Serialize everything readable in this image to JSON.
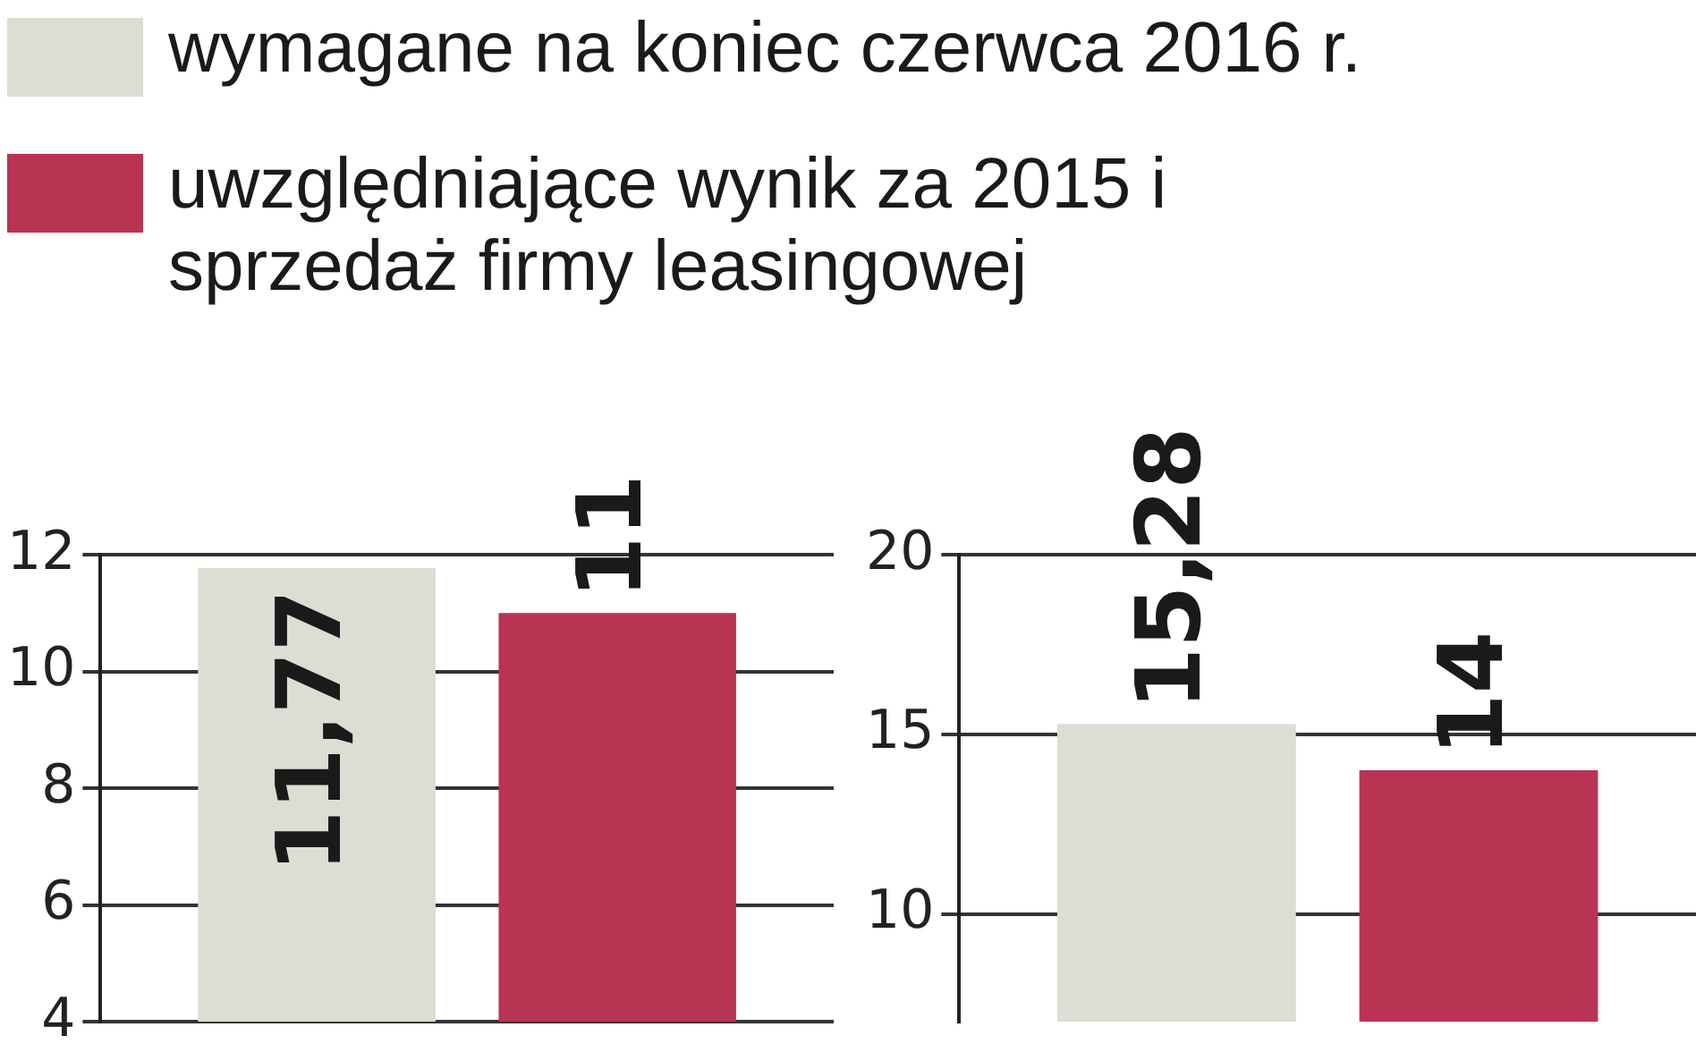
{
  "chart_data": [
    {
      "type": "bar",
      "categories": [
        null
      ],
      "series": [
        {
          "name": "wymagane na koniec czerwca 2016 r.",
          "color": "#dcddd3",
          "values": [
            11.77
          ],
          "value_labels": [
            "11,77"
          ]
        },
        {
          "name": "uwzględniające wynik za 2015 i sprzedaż firmy leasingowej",
          "color": "#b93453",
          "values": [
            11
          ],
          "value_labels": [
            "11"
          ]
        }
      ],
      "ylim": [
        4,
        12
      ],
      "yticks": [
        4,
        6,
        8,
        10,
        12
      ],
      "grid": "y",
      "legend": "top"
    },
    {
      "type": "bar",
      "categories": [
        null
      ],
      "series": [
        {
          "color": "#dcddd3",
          "values": [
            15.28
          ],
          "value_labels": [
            "15,28"
          ]
        },
        {
          "color": "#b93453",
          "values": [
            14
          ],
          "value_labels": [
            "14"
          ]
        }
      ],
      "ylim": [
        7,
        20
      ],
      "yticks": [
        10,
        15,
        20
      ],
      "grid": "y"
    }
  ]
}
